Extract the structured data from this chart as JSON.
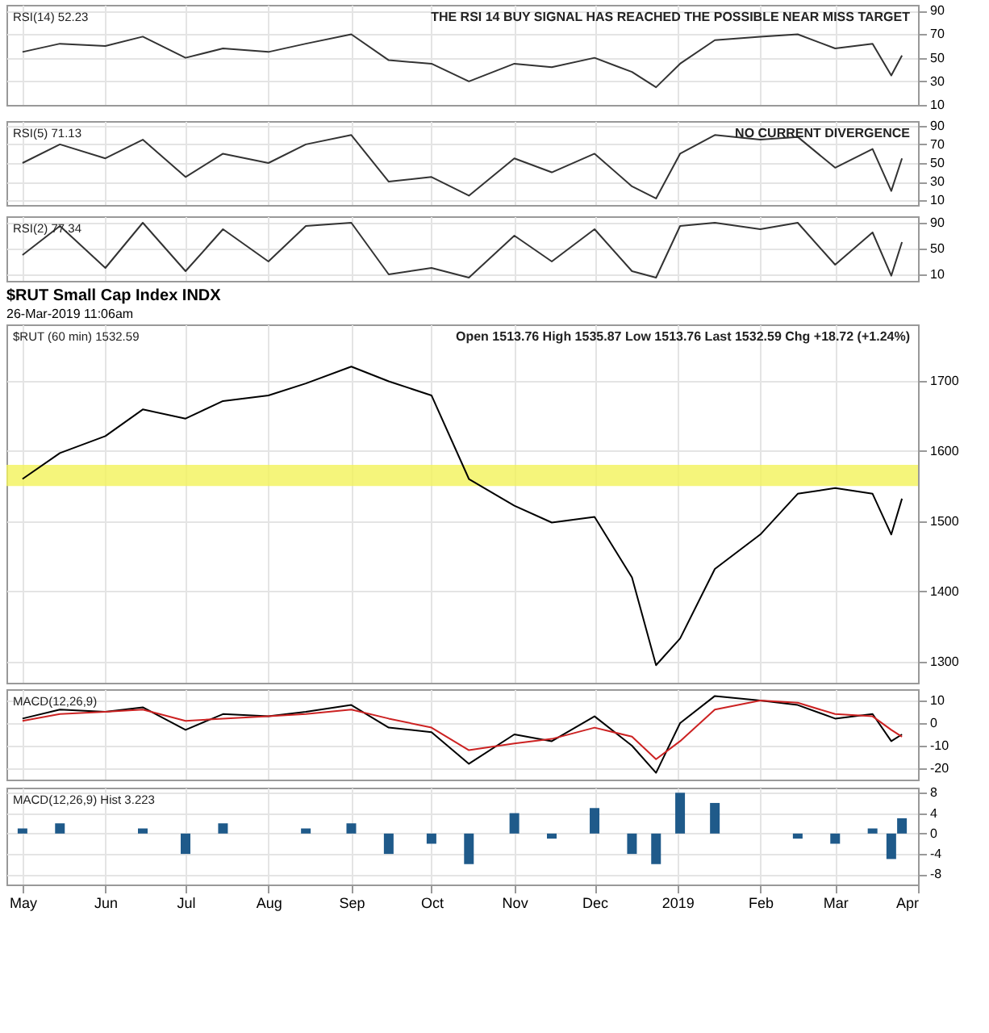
{
  "chart_data": [
    {
      "type": "line",
      "ylabel": "RSI(14) 52.23",
      "annotations": [
        "THE RSI 14 BUY SIGNAL HAS REACHED THE POSSIBLE NEAR MISS TARGET"
      ],
      "x": [
        "2018-05-01",
        "2018-05-15",
        "2018-06-01",
        "2018-06-15",
        "2018-07-01",
        "2018-07-15",
        "2018-08-01",
        "2018-08-15",
        "2018-09-01",
        "2018-09-15",
        "2018-10-01",
        "2018-10-15",
        "2018-11-01",
        "2018-11-15",
        "2018-12-01",
        "2018-12-15",
        "2018-12-24",
        "2019-01-02",
        "2019-01-15",
        "2019-02-01",
        "2019-02-15",
        "2019-03-01",
        "2019-03-15",
        "2019-03-22",
        "2019-03-26"
      ],
      "series": [
        {
          "color": "#333333",
          "values": [
            55,
            62,
            60,
            68,
            50,
            58,
            55,
            62,
            70,
            48,
            45,
            30,
            45,
            42,
            50,
            38,
            25,
            45,
            65,
            68,
            70,
            58,
            62,
            35,
            52
          ]
        }
      ],
      "xlim": [
        "2018-04-25",
        "2019-04-01"
      ],
      "ylim": [
        10,
        95
      ],
      "yticks": [
        10,
        30,
        50,
        70,
        90
      ],
      "grid": true,
      "tick_labels": "y"
    },
    {
      "type": "line",
      "ylabel": "RSI(5) 71.13",
      "annotations": [
        "NO CURRENT DIVERGENCE"
      ],
      "x": [
        "2018-05-01",
        "2018-05-15",
        "2018-06-01",
        "2018-06-15",
        "2018-07-01",
        "2018-07-15",
        "2018-08-01",
        "2018-08-15",
        "2018-09-01",
        "2018-09-15",
        "2018-10-01",
        "2018-10-15",
        "2018-11-01",
        "2018-11-15",
        "2018-12-01",
        "2018-12-15",
        "2018-12-24",
        "2019-01-02",
        "2019-01-15",
        "2019-02-01",
        "2019-02-15",
        "2019-03-01",
        "2019-03-15",
        "2019-03-22",
        "2019-03-26"
      ],
      "series": [
        {
          "color": "#333333",
          "values": [
            50,
            70,
            55,
            75,
            35,
            60,
            50,
            70,
            80,
            30,
            35,
            15,
            55,
            40,
            60,
            25,
            12,
            60,
            80,
            75,
            78,
            45,
            65,
            20,
            55
          ]
        }
      ],
      "xlim": [
        "2018-04-25",
        "2019-04-01"
      ],
      "ylim": [
        5,
        95
      ],
      "yticks": [
        10,
        30,
        50,
        70,
        90
      ],
      "grid": true,
      "tick_labels": "y"
    },
    {
      "type": "line",
      "ylabel": "RSI(2) 77.34",
      "x": [
        "2018-05-01",
        "2018-05-15",
        "2018-06-01",
        "2018-06-15",
        "2018-07-01",
        "2018-07-15",
        "2018-08-01",
        "2018-08-15",
        "2018-09-01",
        "2018-09-15",
        "2018-10-01",
        "2018-10-15",
        "2018-11-01",
        "2018-11-15",
        "2018-12-01",
        "2018-12-15",
        "2018-12-24",
        "2019-01-02",
        "2019-01-15",
        "2019-02-01",
        "2019-02-15",
        "2019-03-01",
        "2019-03-15",
        "2019-03-22",
        "2019-03-26"
      ],
      "series": [
        {
          "color": "#333333",
          "values": [
            40,
            85,
            20,
            90,
            15,
            80,
            30,
            85,
            90,
            10,
            20,
            5,
            70,
            30,
            80,
            15,
            5,
            85,
            90,
            80,
            90,
            25,
            75,
            8,
            60
          ]
        }
      ],
      "xlim": [
        "2018-04-25",
        "2019-04-01"
      ],
      "ylim": [
        0,
        100
      ],
      "yticks": [
        10,
        50,
        90
      ],
      "grid": true,
      "tick_labels": "y"
    },
    {
      "type": "line",
      "title": "$RUT Small Cap Index INDX",
      "subtitle": "26-Mar-2019 11:06am",
      "ylabel": "$RUT (60 min) 1532.59",
      "annotations": [
        "Open 1513.76 High 1535.87 Low 1513.76 Last 1532.59 Chg +18.72 (+1.24%)"
      ],
      "x": [
        "2018-05-01",
        "2018-05-15",
        "2018-06-01",
        "2018-06-15",
        "2018-07-01",
        "2018-07-15",
        "2018-08-01",
        "2018-08-15",
        "2018-09-01",
        "2018-09-15",
        "2018-10-01",
        "2018-10-15",
        "2018-11-01",
        "2018-11-15",
        "2018-12-01",
        "2018-12-15",
        "2018-12-24",
        "2019-01-02",
        "2019-01-15",
        "2019-02-01",
        "2019-02-15",
        "2019-03-01",
        "2019-03-15",
        "2019-03-22",
        "2019-03-26"
      ],
      "series": [
        {
          "color": "#000000",
          "values": [
            1560,
            1597,
            1621,
            1659,
            1646,
            1671,
            1679,
            1696,
            1720,
            1699,
            1679,
            1560,
            1522,
            1498,
            1506,
            1420,
            1295,
            1333,
            1432,
            1481,
            1539,
            1547,
            1539,
            1481,
            1532
          ]
        }
      ],
      "bands": [
        {
          "axis": "y",
          "from": 1550,
          "to": 1580,
          "color": "#f2f25a"
        }
      ],
      "xlim": [
        "2018-04-25",
        "2019-04-01"
      ],
      "ylim": [
        1270,
        1780
      ],
      "yticks": [
        1300,
        1400,
        1500,
        1600,
        1700
      ],
      "grid": true,
      "tick_labels": "y"
    },
    {
      "type": "line",
      "ylabel": "MACD(12,26,9)",
      "x": [
        "2018-05-01",
        "2018-05-15",
        "2018-06-01",
        "2018-06-15",
        "2018-07-01",
        "2018-07-15",
        "2018-08-01",
        "2018-08-15",
        "2018-09-01",
        "2018-09-15",
        "2018-10-01",
        "2018-10-15",
        "2018-11-01",
        "2018-11-15",
        "2018-12-01",
        "2018-12-15",
        "2018-12-24",
        "2019-01-02",
        "2019-01-15",
        "2019-02-01",
        "2019-02-15",
        "2019-03-01",
        "2019-03-15",
        "2019-03-22",
        "2019-03-26"
      ],
      "series": [
        {
          "color": "#000000",
          "values": [
            2,
            6,
            5,
            7,
            -3,
            4,
            3,
            5,
            8,
            -2,
            -4,
            -18,
            -5,
            -8,
            3,
            -10,
            -22,
            0,
            12,
            10,
            8,
            2,
            4,
            -8,
            -5
          ]
        },
        {
          "color": "#cc2222",
          "values": [
            1,
            4,
            5,
            6,
            1,
            2,
            3,
            4,
            6,
            2,
            -2,
            -12,
            -9,
            -7,
            -2,
            -6,
            -16,
            -8,
            6,
            10,
            9,
            4,
            3,
            -3,
            -6
          ]
        }
      ],
      "xlim": [
        "2018-04-25",
        "2019-04-01"
      ],
      "ylim": [
        -25,
        15
      ],
      "yticks": [
        -20,
        -10,
        0,
        10
      ],
      "grid": true,
      "tick_labels": "y"
    },
    {
      "type": "bar",
      "ylabel": "MACD(12,26,9) Hist 3.223",
      "x": [
        "2018-05-01",
        "2018-05-15",
        "2018-06-01",
        "2018-06-15",
        "2018-07-01",
        "2018-07-15",
        "2018-08-01",
        "2018-08-15",
        "2018-09-01",
        "2018-09-15",
        "2018-10-01",
        "2018-10-15",
        "2018-11-01",
        "2018-11-15",
        "2018-12-01",
        "2018-12-15",
        "2018-12-24",
        "2019-01-02",
        "2019-01-15",
        "2019-02-01",
        "2019-02-15",
        "2019-03-01",
        "2019-03-15",
        "2019-03-22",
        "2019-03-26"
      ],
      "series": [
        {
          "color": "#1f5a8a",
          "values": [
            1,
            2,
            0,
            1,
            -4,
            2,
            0,
            1,
            2,
            -4,
            -2,
            -6,
            4,
            -1,
            5,
            -4,
            -6,
            8,
            6,
            0,
            -1,
            -2,
            1,
            -5,
            3
          ]
        }
      ],
      "xlim": [
        "2018-04-25",
        "2019-04-01"
      ],
      "xticks": [
        {
          "value": "2018-05-01",
          "label": "May"
        },
        {
          "value": "2018-06-01",
          "label": "Jun"
        },
        {
          "value": "2018-07-01",
          "label": "Jul"
        },
        {
          "value": "2018-08-01",
          "label": "Aug"
        },
        {
          "value": "2018-09-01",
          "label": "Sep"
        },
        {
          "value": "2018-10-01",
          "label": "Oct"
        },
        {
          "value": "2018-11-01",
          "label": "Nov"
        },
        {
          "value": "2018-12-01",
          "label": "Dec"
        },
        {
          "value": "2019-01-01",
          "label": "2019"
        },
        {
          "value": "2019-02-01",
          "label": "Feb"
        },
        {
          "value": "2019-03-01",
          "label": "Mar"
        },
        {
          "value": "2019-04-01",
          "label": "Apr"
        }
      ],
      "ylim": [
        -10,
        9
      ],
      "yticks": [
        -8,
        -4,
        0,
        4,
        8
      ],
      "grid": true
    }
  ]
}
